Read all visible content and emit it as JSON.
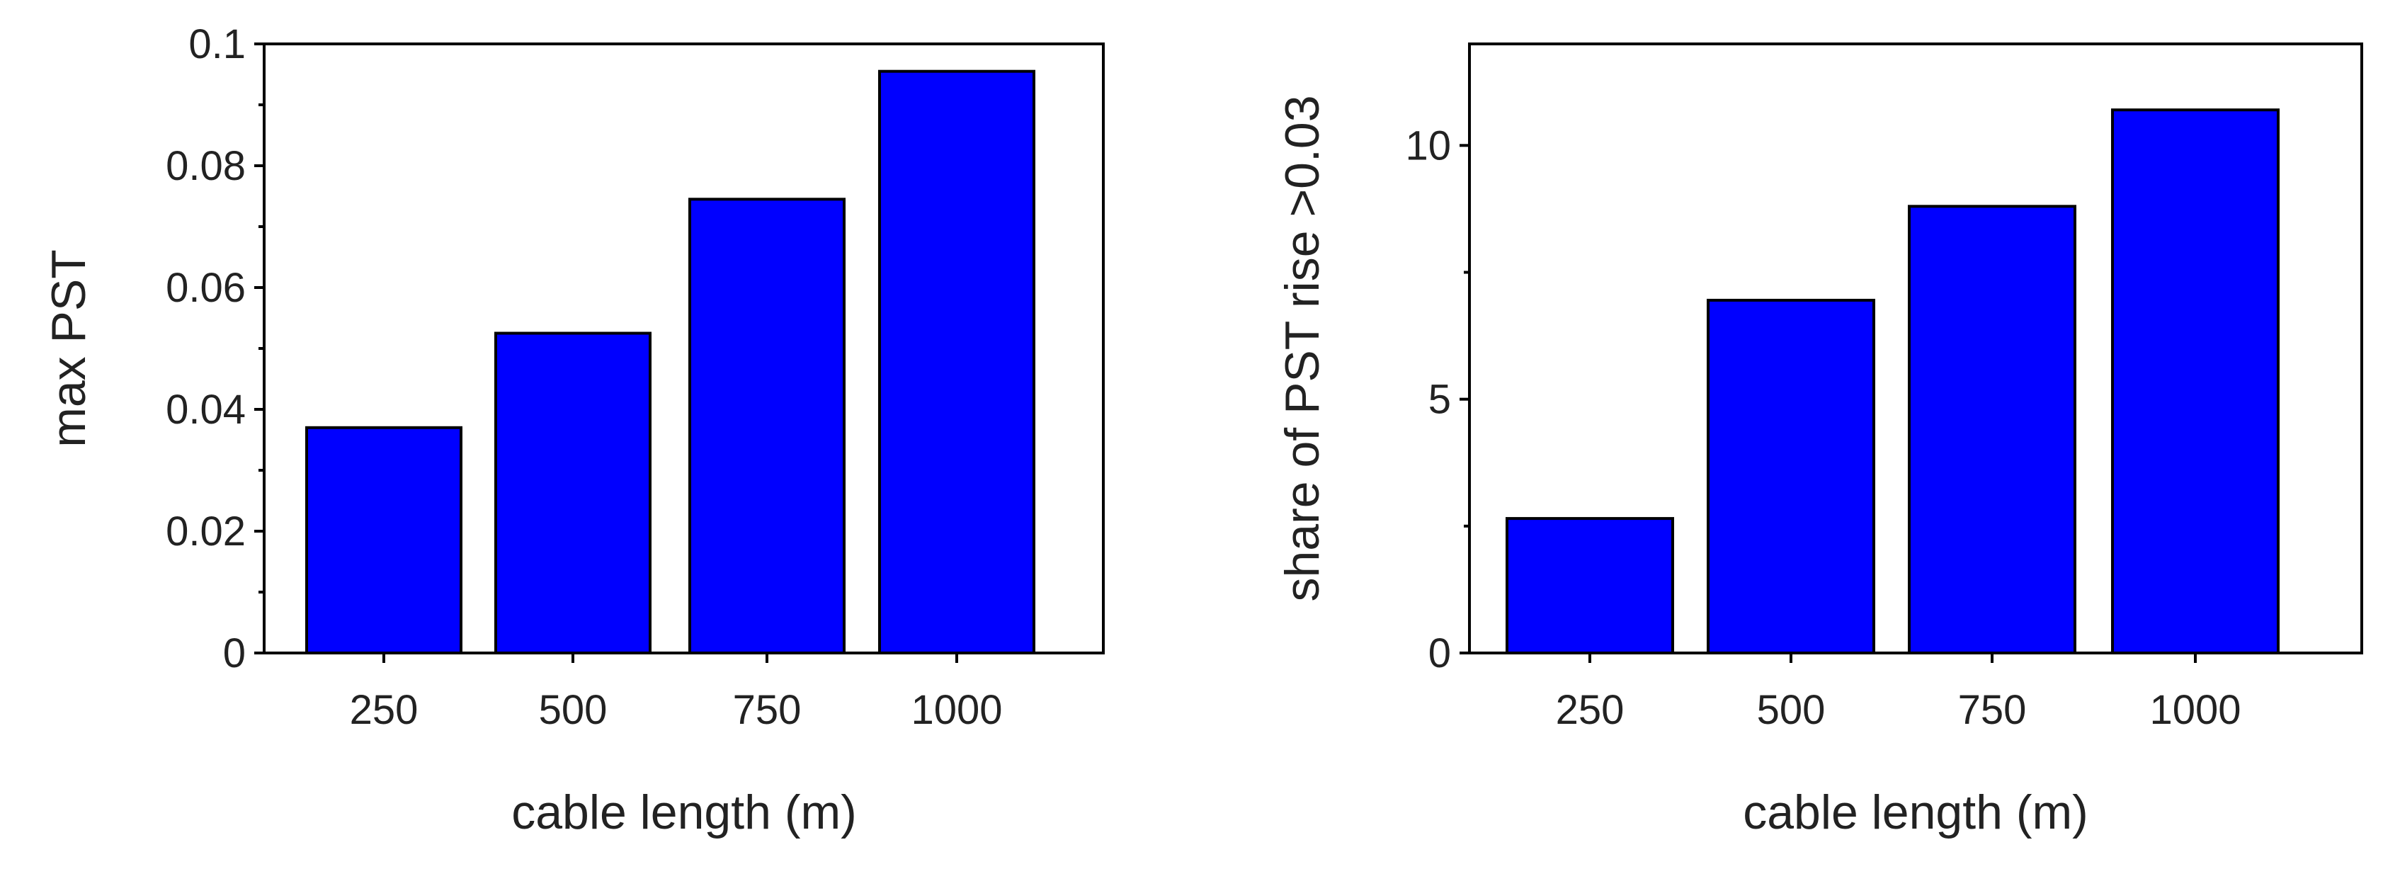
{
  "chart_data": [
    {
      "type": "bar",
      "categories": [
        "250",
        "500",
        "750",
        "1000"
      ],
      "values": [
        0.037,
        0.0525,
        0.0745,
        0.0955
      ],
      "xlabel": "cable length (m)",
      "ylabel": "max PST",
      "ylim": [
        0,
        0.1
      ],
      "yticks": [
        "0",
        "0.02",
        "0.04",
        "0.06",
        "0.08",
        "0.1"
      ],
      "bar_color": "#0000ff",
      "grid": false,
      "legend": "none"
    },
    {
      "type": "bar",
      "categories": [
        "250",
        "500",
        "750",
        "1000"
      ],
      "values": [
        2.65,
        6.95,
        8.8,
        10.7
      ],
      "xlabel": "cable length (m)",
      "ylabel": "share of PST rise >0.03",
      "ylim": [
        0,
        12
      ],
      "yticks": [
        "0",
        "5",
        "10"
      ],
      "bar_color": "#0000ff",
      "grid": false,
      "legend": "none"
    }
  ]
}
